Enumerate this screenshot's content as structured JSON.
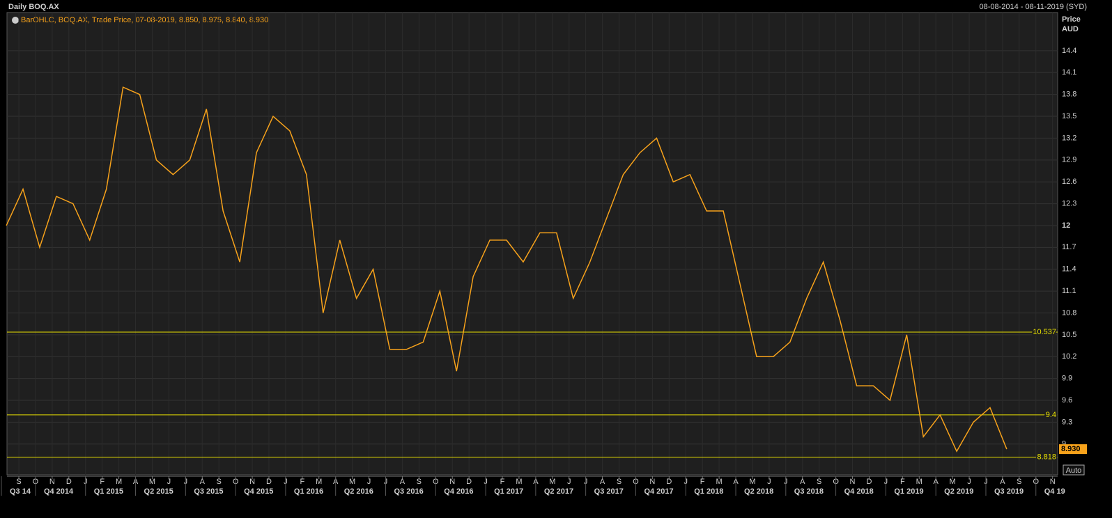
{
  "chart_data": {
    "type": "line",
    "title": "Daily BOQ.AX",
    "date_range": "08-08-2014 - 08-11-2019 (SYD)",
    "legend_text": "BarOHLC, BOQ.AX, Trade Price, 07-08-2019, 8.850, 8.975, 8.840, 8.930",
    "y_axis_title": "Price",
    "y_axis_unit": "AUD",
    "scale_button": "Auto",
    "color": "#f7a21b",
    "grid": true,
    "x": [
      "2014-08",
      "2014-09",
      "2014-10",
      "2014-11",
      "2014-12",
      "2015-01",
      "2015-02",
      "2015-03",
      "2015-04",
      "2015-05",
      "2015-06",
      "2015-07",
      "2015-08",
      "2015-09",
      "2015-10",
      "2015-11",
      "2015-12",
      "2016-01",
      "2016-02",
      "2016-03",
      "2016-04",
      "2016-05",
      "2016-06",
      "2016-07",
      "2016-08",
      "2016-09",
      "2016-10",
      "2016-11",
      "2016-12",
      "2017-01",
      "2017-02",
      "2017-03",
      "2017-04",
      "2017-05",
      "2017-06",
      "2017-07",
      "2017-08",
      "2017-09",
      "2017-10",
      "2017-11",
      "2017-12",
      "2018-01",
      "2018-02",
      "2018-03",
      "2018-04",
      "2018-05",
      "2018-06",
      "2018-07",
      "2018-08",
      "2018-09",
      "2018-10",
      "2018-11",
      "2018-12",
      "2019-01",
      "2019-02",
      "2019-03",
      "2019-04",
      "2019-05",
      "2019-06",
      "2019-07",
      "2019-08"
    ],
    "values": [
      12.0,
      12.5,
      11.7,
      12.4,
      12.3,
      11.8,
      12.5,
      13.9,
      13.8,
      12.9,
      12.7,
      12.9,
      13.6,
      12.2,
      11.5,
      13.0,
      13.5,
      13.3,
      12.7,
      10.8,
      11.8,
      11.0,
      11.4,
      10.3,
      10.3,
      10.4,
      11.1,
      10.0,
      11.3,
      11.8,
      11.8,
      11.5,
      11.9,
      11.9,
      11.0,
      11.5,
      12.1,
      12.7,
      13.0,
      13.2,
      12.6,
      12.7,
      12.2,
      12.2,
      11.2,
      10.2,
      10.2,
      10.4,
      11.0,
      11.5,
      10.7,
      9.8,
      9.8,
      9.6,
      10.5,
      9.1,
      9.4,
      8.9,
      9.3,
      9.5,
      8.93
    ],
    "ylim": [
      8.577,
      14.925
    ],
    "yticks": [
      9,
      9.3,
      9.6,
      9.9,
      10.2,
      10.5,
      10.8,
      11.1,
      11.4,
      11.7,
      12,
      12.3,
      12.6,
      12.9,
      13.2,
      13.5,
      13.8,
      14.1,
      14.4
    ],
    "levels": [
      10.537,
      9.4,
      8.818
    ],
    "level_color": "#e8e000",
    "last_price": {
      "value": 8.93,
      "label": "8.930"
    },
    "xticks": [
      {
        "value": "2014-09",
        "label": "S"
      },
      {
        "value": "2014-10",
        "label": "O"
      },
      {
        "value": "2014-11",
        "label": "N"
      },
      {
        "value": "2014-12",
        "label": "D"
      },
      {
        "value": "2015-01",
        "label": "J"
      },
      {
        "value": "2015-02",
        "label": "F"
      },
      {
        "value": "2015-03",
        "label": "M"
      },
      {
        "value": "2015-04",
        "label": "A"
      },
      {
        "value": "2015-05",
        "label": "M"
      },
      {
        "value": "2015-06",
        "label": "J"
      },
      {
        "value": "2015-07",
        "label": "J"
      },
      {
        "value": "2015-08",
        "label": "A"
      },
      {
        "value": "2015-09",
        "label": "S"
      },
      {
        "value": "2015-10",
        "label": "O"
      },
      {
        "value": "2015-11",
        "label": "N"
      },
      {
        "value": "2015-12",
        "label": "D"
      },
      {
        "value": "2016-01",
        "label": "J"
      },
      {
        "value": "2016-02",
        "label": "F"
      },
      {
        "value": "2016-03",
        "label": "M"
      },
      {
        "value": "2016-04",
        "label": "A"
      },
      {
        "value": "2016-05",
        "label": "M"
      },
      {
        "value": "2016-06",
        "label": "J"
      },
      {
        "value": "2016-07",
        "label": "J"
      },
      {
        "value": "2016-08",
        "label": "A"
      },
      {
        "value": "2016-09",
        "label": "S"
      },
      {
        "value": "2016-10",
        "label": "O"
      },
      {
        "value": "2016-11",
        "label": "N"
      },
      {
        "value": "2016-12",
        "label": "D"
      },
      {
        "value": "2017-01",
        "label": "J"
      },
      {
        "value": "2017-02",
        "label": "F"
      },
      {
        "value": "2017-03",
        "label": "M"
      },
      {
        "value": "2017-04",
        "label": "A"
      },
      {
        "value": "2017-05",
        "label": "M"
      },
      {
        "value": "2017-06",
        "label": "J"
      },
      {
        "value": "2017-07",
        "label": "J"
      },
      {
        "value": "2017-08",
        "label": "A"
      },
      {
        "value": "2017-09",
        "label": "S"
      },
      {
        "value": "2017-10",
        "label": "O"
      },
      {
        "value": "2017-11",
        "label": "N"
      },
      {
        "value": "2017-12",
        "label": "D"
      },
      {
        "value": "2018-01",
        "label": "J"
      },
      {
        "value": "2018-02",
        "label": "F"
      },
      {
        "value": "2018-03",
        "label": "M"
      },
      {
        "value": "2018-04",
        "label": "A"
      },
      {
        "value": "2018-05",
        "label": "M"
      },
      {
        "value": "2018-06",
        "label": "J"
      },
      {
        "value": "2018-07",
        "label": "J"
      },
      {
        "value": "2018-08",
        "label": "A"
      },
      {
        "value": "2018-09",
        "label": "S"
      },
      {
        "value": "2018-10",
        "label": "O"
      },
      {
        "value": "2018-11",
        "label": "N"
      },
      {
        "value": "2018-12",
        "label": "D"
      },
      {
        "value": "2019-01",
        "label": "J"
      },
      {
        "value": "2019-02",
        "label": "F"
      },
      {
        "value": "2019-03",
        "label": "M"
      },
      {
        "value": "2019-04",
        "label": "A"
      },
      {
        "value": "2019-05",
        "label": "M"
      },
      {
        "value": "2019-06",
        "label": "J"
      },
      {
        "value": "2019-07",
        "label": "J"
      },
      {
        "value": "2019-08",
        "label": "A"
      },
      {
        "value": "2019-09",
        "label": "S"
      },
      {
        "value": "2019-10",
        "label": "O"
      },
      {
        "value": "2019-11",
        "label": "N"
      }
    ],
    "quarters": [
      {
        "value": "2014-07",
        "label": "Q3 14"
      },
      {
        "value": "2014-10",
        "label": "Q4 2014"
      },
      {
        "value": "2015-01",
        "label": "Q1 2015"
      },
      {
        "value": "2015-04",
        "label": "Q2 2015"
      },
      {
        "value": "2015-07",
        "label": "Q3 2015"
      },
      {
        "value": "2015-10",
        "label": "Q4 2015"
      },
      {
        "value": "2016-01",
        "label": "Q1 2016"
      },
      {
        "value": "2016-04",
        "label": "Q2 2016"
      },
      {
        "value": "2016-07",
        "label": "Q3 2016"
      },
      {
        "value": "2016-10",
        "label": "Q4 2016"
      },
      {
        "value": "2017-01",
        "label": "Q1 2017"
      },
      {
        "value": "2017-04",
        "label": "Q2 2017"
      },
      {
        "value": "2017-07",
        "label": "Q3 2017"
      },
      {
        "value": "2017-10",
        "label": "Q4 2017"
      },
      {
        "value": "2018-01",
        "label": "Q1 2018"
      },
      {
        "value": "2018-04",
        "label": "Q2 2018"
      },
      {
        "value": "2018-07",
        "label": "Q3 2018"
      },
      {
        "value": "2018-10",
        "label": "Q4 2018"
      },
      {
        "value": "2019-01",
        "label": "Q1 2019"
      },
      {
        "value": "2019-04",
        "label": "Q2 2019"
      },
      {
        "value": "2019-07",
        "label": "Q3 2019"
      },
      {
        "value": "2019-10",
        "label": "Q4 19"
      }
    ]
  }
}
